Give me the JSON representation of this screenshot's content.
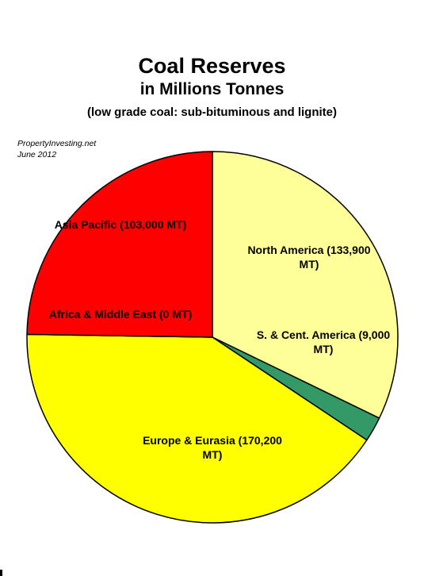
{
  "header": {
    "title": "Coal Reserves",
    "subtitle": "in Millions Tonnes",
    "note": "(low grade coal: sub-bituminous and lignite)"
  },
  "source": {
    "site": "PropertyInvesting.net",
    "date": "June 2012"
  },
  "chart_data": {
    "type": "pie",
    "title": "Coal Reserves",
    "subtitle": "in Millions Tonnes",
    "note": "(low grade coal: sub-bituminous and lignite)",
    "slices": [
      {
        "name": "North America",
        "value": 133900,
        "color": "#ffff99",
        "label_lines": [
          "North America (133,900",
          "MT)"
        ]
      },
      {
        "name": "S. & Cent. America",
        "value": 9000,
        "color": "#339966",
        "label_lines": [
          "S. & Cent. America (9,000",
          "MT)"
        ]
      },
      {
        "name": "Europe & Eurasia",
        "value": 170200,
        "color": "#ffff00",
        "label_lines": [
          "Europe & Eurasia (170,200",
          "MT)"
        ]
      },
      {
        "name": "Africa & Middle East",
        "value": 0,
        "color": "#3366ff",
        "label_lines": [
          "Africa & Middle East (0 MT)"
        ]
      },
      {
        "name": "Asia Pacific",
        "value": 103000,
        "color": "#ff0000",
        "label_lines": [
          "Asia Pacific (103,000 MT)"
        ]
      }
    ],
    "start_angle_deg": 0,
    "direction": "clockwise",
    "legend": "none"
  }
}
